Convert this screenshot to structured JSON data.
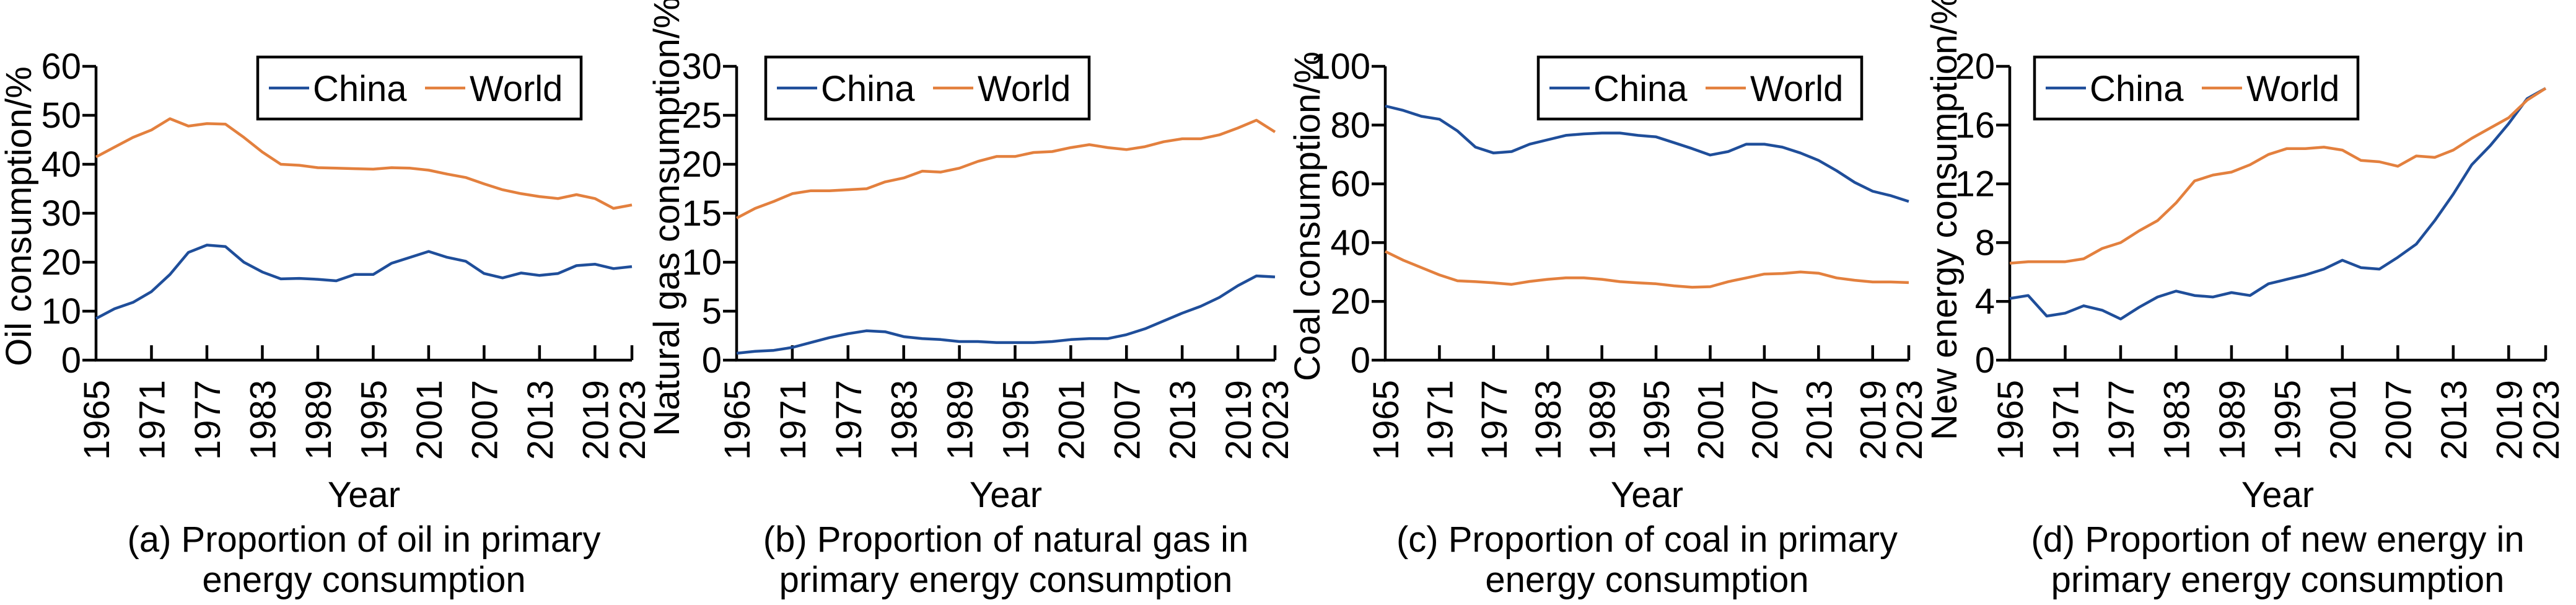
{
  "colors": {
    "China": "#1f4e9a",
    "World": "#e3803e"
  },
  "chart_data": [
    {
      "type": "line",
      "caption": [
        "(a) Proportion of oil in primary",
        "energy consumption"
      ],
      "xlabel": "Year",
      "ylabel": "Oil consumption/%",
      "xlim": [
        1965,
        2023
      ],
      "ylim": [
        0,
        60
      ],
      "yticks": [
        0,
        10,
        20,
        30,
        40,
        50,
        60
      ],
      "xticks": [
        1965,
        1971,
        1977,
        1983,
        1989,
        1995,
        2001,
        2007,
        2013,
        2019,
        2023
      ],
      "legend": "top-right",
      "grid": false,
      "x": [
        1965,
        1967,
        1969,
        1971,
        1973,
        1975,
        1977,
        1979,
        1981,
        1983,
        1985,
        1987,
        1989,
        1991,
        1993,
        1995,
        1997,
        1999,
        2001,
        2003,
        2005,
        2007,
        2009,
        2011,
        2013,
        2015,
        2017,
        2019,
        2021,
        2023
      ],
      "series": [
        {
          "name": "China",
          "values": [
            8.5,
            10.5,
            11.8,
            14,
            17.5,
            22,
            23.5,
            23.2,
            20,
            18,
            16.6,
            16.7,
            16.5,
            16.2,
            17.5,
            17.5,
            19.8,
            21,
            22.2,
            21,
            20.2,
            17.7,
            16.8,
            17.8,
            17.3,
            17.7,
            19.3,
            19.6,
            18.7,
            19.1
          ]
        },
        {
          "name": "World",
          "values": [
            41.5,
            43.5,
            45.5,
            47,
            49.3,
            47.8,
            48.3,
            48.2,
            45.5,
            42.5,
            40,
            39.8,
            39.3,
            39.2,
            39.1,
            39,
            39.3,
            39.2,
            38.8,
            38,
            37.3,
            36,
            34.8,
            34,
            33.4,
            33,
            33.8,
            33,
            31,
            31.7
          ]
        }
      ]
    },
    {
      "type": "line",
      "caption": [
        "(b) Proportion of natural gas in",
        "primary energy consumption"
      ],
      "xlabel": "Year",
      "ylabel": "Natural gas consumption/%",
      "xlim": [
        1965,
        2023
      ],
      "ylim": [
        0,
        30
      ],
      "yticks": [
        0,
        5,
        10,
        15,
        20,
        25,
        30
      ],
      "xticks": [
        1965,
        1971,
        1977,
        1983,
        1989,
        1995,
        2001,
        2007,
        2013,
        2019,
        2023
      ],
      "legend": "top-left",
      "grid": false,
      "x": [
        1965,
        1967,
        1969,
        1971,
        1973,
        1975,
        1977,
        1979,
        1981,
        1983,
        1985,
        1987,
        1989,
        1991,
        1993,
        1995,
        1997,
        1999,
        2001,
        2003,
        2005,
        2007,
        2009,
        2011,
        2013,
        2015,
        2017,
        2019,
        2021,
        2023
      ],
      "series": [
        {
          "name": "China",
          "values": [
            0.7,
            0.9,
            1.0,
            1.3,
            1.8,
            2.3,
            2.7,
            3.0,
            2.9,
            2.4,
            2.2,
            2.1,
            1.9,
            1.9,
            1.8,
            1.8,
            1.8,
            1.9,
            2.1,
            2.2,
            2.2,
            2.6,
            3.2,
            4.0,
            4.8,
            5.5,
            6.4,
            7.6,
            8.6,
            8.5
          ]
        },
        {
          "name": "World",
          "values": [
            14.5,
            15.5,
            16.2,
            17,
            17.3,
            17.3,
            17.4,
            17.5,
            18.2,
            18.6,
            19.3,
            19.2,
            19.6,
            20.3,
            20.8,
            20.8,
            21.2,
            21.3,
            21.7,
            22,
            21.7,
            21.5,
            21.8,
            22.3,
            22.6,
            22.6,
            23,
            23.7,
            24.5,
            23.3
          ]
        }
      ]
    },
    {
      "type": "line",
      "caption": [
        "(c) Proportion of coal in primary",
        "energy consumption"
      ],
      "xlabel": "Year",
      "ylabel": "Coal consumption/%",
      "xlim": [
        1965,
        2023
      ],
      "ylim": [
        0,
        100
      ],
      "yticks": [
        0,
        20,
        40,
        60,
        80,
        100
      ],
      "xticks": [
        1965,
        1971,
        1977,
        1983,
        1989,
        1995,
        2001,
        2007,
        2013,
        2019,
        2023
      ],
      "legend": "top-right",
      "grid": false,
      "x": [
        1965,
        1967,
        1969,
        1971,
        1973,
        1975,
        1977,
        1979,
        1981,
        1983,
        1985,
        1987,
        1989,
        1991,
        1993,
        1995,
        1997,
        1999,
        2001,
        2003,
        2005,
        2007,
        2009,
        2011,
        2013,
        2015,
        2017,
        2019,
        2021,
        2023
      ],
      "series": [
        {
          "name": "China",
          "values": [
            86.5,
            85,
            83,
            82,
            78,
            72.5,
            70.5,
            71,
            73.5,
            75,
            76.5,
            77,
            77.3,
            77.3,
            76.5,
            76,
            74,
            72,
            69.8,
            71,
            73.5,
            73.5,
            72.5,
            70.5,
            68,
            64.5,
            60.5,
            57.5,
            56,
            54
          ]
        },
        {
          "name": "World",
          "values": [
            37,
            34,
            31.5,
            29,
            27,
            26.7,
            26.3,
            25.8,
            26.8,
            27.5,
            28,
            28,
            27.5,
            26.7,
            26.3,
            26,
            25.3,
            24.8,
            25,
            26.7,
            28,
            29.3,
            29.5,
            30,
            29.6,
            28,
            27.2,
            26.6,
            26.6,
            26.4
          ]
        }
      ]
    },
    {
      "type": "line",
      "caption": [
        "(d) Proportion of new energy in",
        "primary energy consumption"
      ],
      "xlabel": "Year",
      "ylabel": "New energy consumption/%",
      "xlim": [
        1965,
        2023
      ],
      "ylim": [
        0,
        20
      ],
      "yticks": [
        0,
        4,
        8,
        12,
        16,
        20
      ],
      "xticks": [
        1965,
        1971,
        1977,
        1983,
        1989,
        1995,
        2001,
        2007,
        2013,
        2019,
        2023
      ],
      "legend": "top-left",
      "grid": false,
      "x": [
        1965,
        1967,
        1969,
        1971,
        1973,
        1975,
        1977,
        1979,
        1981,
        1983,
        1985,
        1987,
        1989,
        1991,
        1993,
        1995,
        1997,
        1999,
        2001,
        2003,
        2005,
        2007,
        2009,
        2011,
        2013,
        2015,
        2017,
        2019,
        2021,
        2023
      ],
      "series": [
        {
          "name": "China",
          "values": [
            4.2,
            4.4,
            3.0,
            3.2,
            3.7,
            3.4,
            2.8,
            3.6,
            4.3,
            4.7,
            4.4,
            4.3,
            4.6,
            4.4,
            5.2,
            5.5,
            5.8,
            6.2,
            6.8,
            6.3,
            6.2,
            7.0,
            7.9,
            9.5,
            11.3,
            13.3,
            14.6,
            16.1,
            17.8,
            18.5
          ]
        },
        {
          "name": "World",
          "values": [
            6.6,
            6.7,
            6.7,
            6.7,
            6.9,
            7.6,
            8.0,
            8.8,
            9.5,
            10.7,
            12.2,
            12.6,
            12.8,
            13.3,
            14.0,
            14.4,
            14.4,
            14.5,
            14.3,
            13.6,
            13.5,
            13.2,
            13.9,
            13.8,
            14.3,
            15.1,
            15.8,
            16.5,
            17.7,
            18.5
          ]
        }
      ]
    }
  ]
}
